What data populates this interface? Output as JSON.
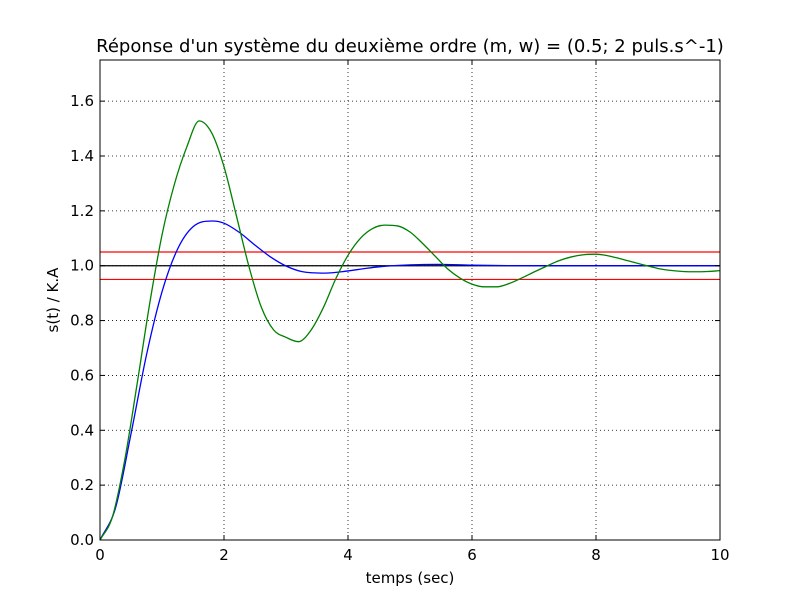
{
  "chart_data": {
    "type": "line",
    "title": "Réponse d'un système du deuxième ordre (m, w) = (0.5; 2 puls.s^-1)",
    "xlabel": "temps (sec)",
    "ylabel": "s(t) / K.A",
    "xlim": [
      0,
      10
    ],
    "ylim": [
      0,
      1.75
    ],
    "xticks": [
      0,
      2,
      4,
      6,
      8,
      10
    ],
    "xtick_labels": [
      "0",
      "2",
      "4",
      "6",
      "8",
      "10"
    ],
    "yticks": [
      0.0,
      0.2,
      0.4,
      0.6,
      0.8,
      1.0,
      1.2,
      1.4,
      1.6
    ],
    "ytick_labels": [
      "0.0",
      "0.2",
      "0.4",
      "0.6",
      "0.8",
      "1.0",
      "1.2",
      "1.4",
      "1.6"
    ],
    "grid": true,
    "grid_style": "dotted",
    "legend": "none",
    "series": [
      {
        "color": "#0000ff",
        "x": [
          0,
          0.25,
          0.5,
          0.75,
          1.0,
          1.25,
          1.5,
          1.81,
          2.0,
          2.25,
          2.5,
          2.75,
          3.0,
          3.25,
          3.63,
          4.0,
          4.25,
          4.5,
          5.0,
          5.44,
          6.0,
          7.0,
          8.0,
          9.0,
          10.0
        ],
        "y": [
          0,
          0.117,
          0.387,
          0.675,
          0.905,
          1.06,
          1.142,
          1.163,
          1.155,
          1.121,
          1.075,
          1.032,
          0.999,
          0.979,
          0.973,
          0.981,
          0.989,
          0.996,
          1.003,
          1.005,
          1.002,
          1.0,
          1.0,
          1.0,
          1.0
        ]
      },
      {
        "color": "#008000",
        "x": [
          0,
          0.2,
          0.4,
          0.6,
          0.8,
          1.0,
          1.2,
          1.4,
          1.6,
          1.8,
          2.0,
          2.2,
          2.4,
          2.6,
          2.8,
          3.0,
          3.2,
          3.4,
          3.6,
          3.8,
          4.0,
          4.2,
          4.4,
          4.6,
          4.8,
          5.0,
          5.2,
          5.4,
          5.6,
          5.8,
          6.0,
          6.2,
          6.4,
          6.6,
          6.8,
          7.0,
          7.2,
          7.4,
          7.6,
          7.8,
          8.0,
          8.2,
          8.4,
          8.6,
          8.8,
          9.0,
          9.2,
          9.4,
          9.6,
          9.8,
          10.0
        ],
        "y": [
          0,
          0.084,
          0.293,
          0.571,
          0.86,
          1.112,
          1.297,
          1.433,
          1.528,
          1.485,
          1.361,
          1.182,
          0.999,
          0.85,
          0.766,
          0.739,
          0.723,
          0.764,
          0.846,
          0.951,
          1.038,
          1.1,
          1.136,
          1.148,
          1.145,
          1.123,
          1.082,
          1.036,
          0.99,
          0.956,
          0.933,
          0.923,
          0.923,
          0.935,
          0.955,
          0.977,
          0.998,
          1.018,
          1.032,
          1.04,
          1.042,
          1.036,
          1.025,
          1.013,
          1.001,
          0.99,
          0.983,
          0.979,
          0.978,
          0.979,
          0.982
        ]
      }
    ],
    "horizontal_lines": [
      {
        "y": 1.05,
        "color": "#ff0000"
      },
      {
        "y": 0.95,
        "color": "#ff0000"
      },
      {
        "y": 1.0,
        "color": "#000000"
      }
    ]
  }
}
